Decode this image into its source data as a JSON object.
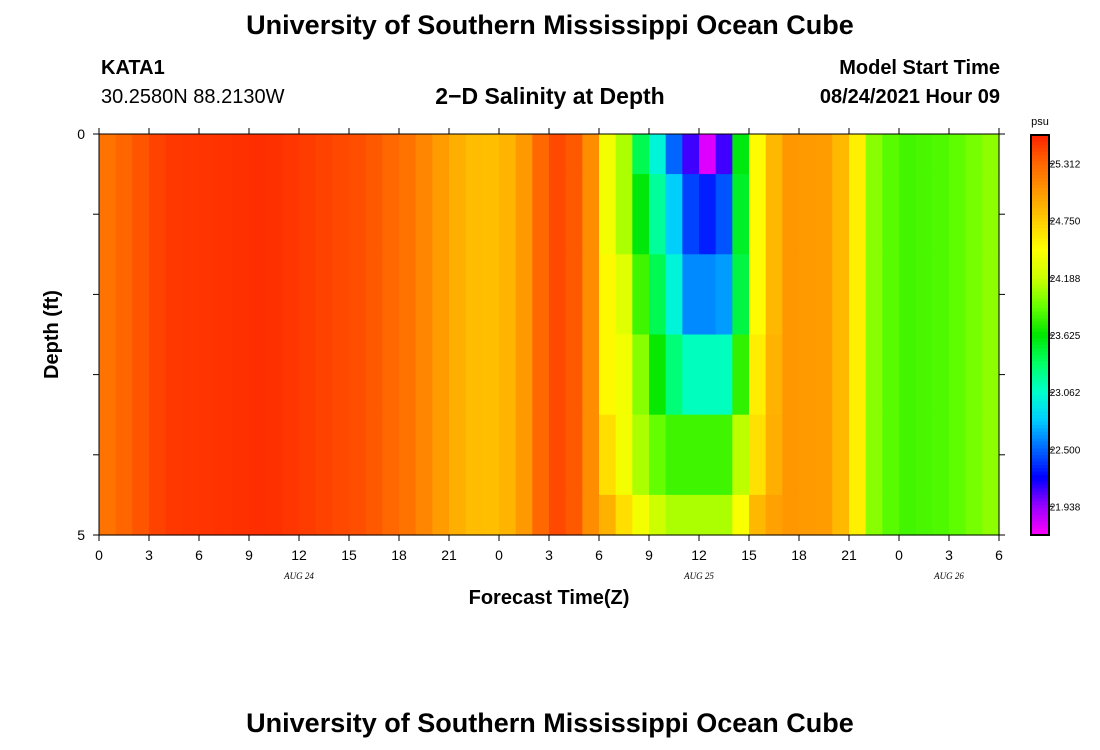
{
  "header": {
    "title": "University of Southern Mississippi Ocean Cube",
    "station_id": "KATA1",
    "coordinates": "30.2580N  88.2130W",
    "plot_title": "2−D Salinity at Depth",
    "model_start_label": "Model Start Time",
    "model_start_value": "08/24/2021 Hour 09"
  },
  "footer": {
    "title": "University of Southern Mississippi Ocean Cube"
  },
  "chart_data": {
    "type": "heatmap",
    "title": "2−D Salinity at Depth",
    "xlabel": "Forecast Time(Z)",
    "ylabel": "Depth (ft)",
    "x_hours": [
      0,
      3,
      6,
      9,
      12,
      15,
      18,
      21,
      24,
      27,
      30,
      33,
      36,
      39,
      42,
      45,
      48,
      51,
      54
    ],
    "x_tick_labels": [
      "0",
      "3",
      "6",
      "9",
      "12",
      "15",
      "18",
      "21",
      "0",
      "3",
      "6",
      "9",
      "12",
      "15",
      "18",
      "21",
      "0",
      "3",
      "6"
    ],
    "date_labels": [
      {
        "hour": 12,
        "label": "AUG 24"
      },
      {
        "hour": 36,
        "label": "AUG 25"
      },
      {
        "hour": 51,
        "label": "AUG 26"
      }
    ],
    "y_tick_labels": [
      "0",
      "5"
    ],
    "ylim": [
      0,
      5
    ],
    "colorbar": {
      "unit": "psu",
      "min": 21.656,
      "max": 25.594,
      "ticks": [
        "25.312",
        "24.750",
        "24.188",
        "23.625",
        "23.062",
        "22.500",
        "21.938"
      ],
      "colors": [
        "#ff00ff",
        "#9900ff",
        "#0000ff",
        "#0066ff",
        "#00ccff",
        "#00ffcc",
        "#00ff66",
        "#00e600",
        "#66ff00",
        "#ccff00",
        "#ffff00",
        "#ffcc00",
        "#ff9900",
        "#ff6600",
        "#ff2200"
      ]
    },
    "depth_levels_ft": [
      0,
      0.5,
      1.5,
      2.5,
      3.5,
      4.5,
      5
    ],
    "depth_rows_ft": [
      [
        0,
        0.5
      ],
      [
        0.5,
        1.5
      ],
      [
        1.5,
        2.5
      ],
      [
        2.5,
        3.5
      ],
      [
        3.5,
        4.5
      ],
      [
        4.5,
        5
      ]
    ],
    "profile": [
      {
        "hour": 0,
        "psu": [
          25.2,
          25.2,
          25.2,
          25.2,
          25.2,
          25.2
        ]
      },
      {
        "hour": 4,
        "psu": [
          25.5,
          25.5,
          25.5,
          25.5,
          25.5,
          25.5
        ]
      },
      {
        "hour": 10,
        "psu": [
          25.55,
          25.55,
          25.55,
          25.55,
          25.55,
          25.55
        ]
      },
      {
        "hour": 16,
        "psu": [
          25.4,
          25.4,
          25.4,
          25.4,
          25.4,
          25.4
        ]
      },
      {
        "hour": 19,
        "psu": [
          25.2,
          25.2,
          25.2,
          25.2,
          25.2,
          25.2
        ]
      },
      {
        "hour": 21,
        "psu": [
          24.95,
          24.95,
          24.95,
          24.95,
          24.95,
          24.95
        ]
      },
      {
        "hour": 23,
        "psu": [
          24.8,
          24.8,
          24.8,
          24.8,
          24.8,
          24.8
        ]
      },
      {
        "hour": 25,
        "psu": [
          24.9,
          24.9,
          24.9,
          24.9,
          24.9,
          24.9
        ]
      },
      {
        "hour": 26.5,
        "psu": [
          25.3,
          25.3,
          25.3,
          25.3,
          25.3,
          25.3
        ]
      },
      {
        "hour": 28,
        "psu": [
          25.5,
          25.5,
          25.5,
          25.5,
          25.5,
          25.5
        ]
      },
      {
        "hour": 29.5,
        "psu": [
          25.1,
          25.1,
          25.1,
          25.1,
          25.1,
          25.1
        ]
      },
      {
        "hour": 30.5,
        "psu": [
          24.4,
          24.4,
          24.5,
          24.5,
          24.65,
          24.9
        ]
      },
      {
        "hour": 31.5,
        "psu": [
          24.1,
          24.1,
          24.3,
          24.4,
          24.4,
          24.65
        ]
      },
      {
        "hour": 32.5,
        "psu": [
          23.4,
          23.6,
          23.8,
          24.0,
          24.1,
          24.4
        ]
      },
      {
        "hour": 33.5,
        "psu": [
          23.0,
          23.2,
          23.4,
          23.65,
          23.9,
          24.2
        ]
      },
      {
        "hour": 34.5,
        "psu": [
          22.5,
          22.8,
          23.0,
          23.3,
          23.8,
          24.1
        ]
      },
      {
        "hour": 35.5,
        "psu": [
          22.1,
          22.4,
          22.6,
          23.1,
          23.8,
          24.1
        ]
      },
      {
        "hour": 36.5,
        "psu": [
          21.75,
          22.3,
          22.6,
          23.1,
          23.8,
          24.1
        ]
      },
      {
        "hour": 37.5,
        "psu": [
          22.1,
          22.45,
          22.65,
          23.1,
          23.8,
          24.1
        ]
      },
      {
        "hour": 38.3,
        "psu": [
          23.3,
          23.2,
          23.1,
          23.5,
          24.0,
          24.3
        ]
      },
      {
        "hour": 39,
        "psu": [
          24.3,
          24.3,
          24.3,
          24.4,
          24.5,
          24.8
        ]
      },
      {
        "hour": 41,
        "psu": [
          25.05,
          25.05,
          25.05,
          25.05,
          25.05,
          25.05
        ]
      },
      {
        "hour": 44,
        "psu": [
          25.0,
          25.0,
          25.0,
          25.0,
          25.0,
          25.0
        ]
      },
      {
        "hour": 45.5,
        "psu": [
          24.55,
          24.55,
          24.55,
          24.55,
          24.55,
          24.55
        ]
      },
      {
        "hour": 46.5,
        "psu": [
          24.0,
          24.0,
          24.0,
          24.0,
          24.0,
          24.0
        ]
      },
      {
        "hour": 48,
        "psu": [
          23.8,
          23.8,
          23.8,
          23.8,
          23.8,
          23.8
        ]
      },
      {
        "hour": 51,
        "psu": [
          23.85,
          23.85,
          23.85,
          23.85,
          23.85,
          23.85
        ]
      },
      {
        "hour": 54,
        "psu": [
          24.05,
          24.05,
          24.05,
          24.05,
          24.05,
          24.05
        ]
      }
    ]
  }
}
